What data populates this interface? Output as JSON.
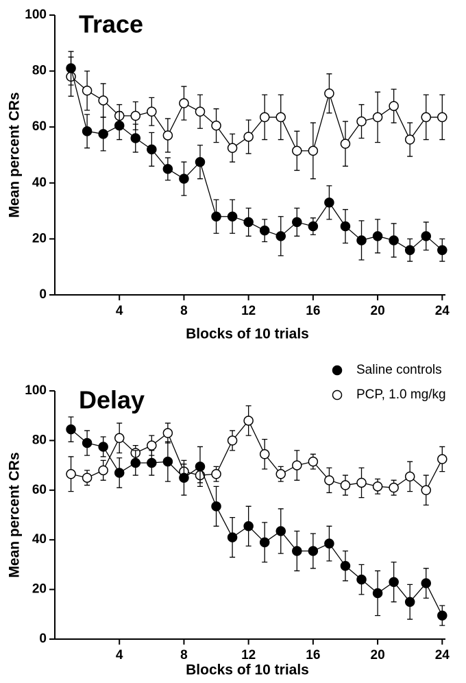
{
  "chart_data": [
    {
      "type": "line",
      "title": "Trace",
      "xlabel": "Blocks of 10 trials",
      "ylabel": "Mean percent CRs",
      "x": [
        1,
        2,
        3,
        4,
        5,
        6,
        7,
        8,
        9,
        10,
        11,
        12,
        13,
        14,
        15,
        16,
        17,
        18,
        19,
        20,
        21,
        22,
        23,
        24
      ],
      "xlim": [
        0,
        24.2
      ],
      "xticks": [
        4,
        8,
        12,
        16,
        20,
        24
      ],
      "ylim": [
        0,
        100
      ],
      "yticks": [
        0,
        20,
        40,
        60,
        80,
        100
      ],
      "series": [
        {
          "marker": "filled",
          "color": "#000000",
          "values": [
            81,
            58.5,
            57.5,
            60.5,
            56,
            52,
            45,
            41.5,
            47.5,
            28,
            28,
            26,
            23,
            21,
            26,
            24.5,
            33,
            24.5,
            19.5,
            21,
            19.5,
            16,
            21,
            16
          ],
          "errors": [
            6,
            6,
            6,
            5,
            5,
            6,
            4,
            6,
            6,
            6,
            6,
            5,
            4,
            7,
            5,
            3,
            6,
            6,
            7,
            6,
            6,
            4,
            5,
            4
          ]
        },
        {
          "marker": "open",
          "color": "#000000",
          "values": [
            78,
            73,
            69.5,
            64,
            64,
            65.5,
            57,
            68.5,
            65.5,
            60.5,
            52.5,
            56.5,
            63.5,
            63.5,
            51.5,
            51.5,
            72,
            54,
            62,
            63.5,
            67.5,
            55.5,
            63.5,
            63.5
          ],
          "errors": [
            7,
            7,
            6,
            4,
            5,
            5,
            6,
            6,
            6,
            6,
            5,
            6,
            8,
            8,
            7,
            10,
            7,
            8,
            6,
            9,
            6,
            6,
            8,
            8
          ]
        }
      ]
    },
    {
      "type": "line",
      "title": "Delay",
      "xlabel": "Blocks of 10 trials",
      "ylabel": "Mean percent CRs",
      "x": [
        1,
        2,
        3,
        4,
        5,
        6,
        7,
        8,
        9,
        10,
        11,
        12,
        13,
        14,
        15,
        16,
        17,
        18,
        19,
        20,
        21,
        22,
        23,
        24
      ],
      "xlim": [
        0,
        24.2
      ],
      "xticks": [
        4,
        8,
        12,
        16,
        20,
        24
      ],
      "ylim": [
        0,
        100
      ],
      "yticks": [
        0,
        20,
        40,
        60,
        80,
        100
      ],
      "legend": "upper right",
      "series": [
        {
          "name": "Saline controls",
          "marker": "filled",
          "color": "#000000",
          "values": [
            84.5,
            79,
            77.5,
            67,
            71,
            71,
            71.5,
            65,
            69.5,
            53.5,
            41,
            45.5,
            39,
            43.5,
            35.5,
            35.5,
            38.5,
            29.5,
            24,
            18.5,
            23,
            15,
            22.5,
            9.5
          ],
          "errors": [
            5,
            5,
            4,
            6,
            5,
            5,
            8,
            7,
            8,
            8,
            8,
            8,
            8,
            9,
            8,
            7,
            7,
            6,
            6,
            9,
            8,
            7,
            6,
            4
          ]
        },
        {
          "name": "PCP, 1.0 mg/kg",
          "marker": "open",
          "color": "#000000",
          "values": [
            66.5,
            65,
            68,
            81,
            75,
            78,
            83,
            67.5,
            66,
            66.5,
            80,
            88,
            74.5,
            66.5,
            70,
            71.5,
            64,
            62,
            63,
            61.5,
            61,
            65.5,
            60,
            72.5
          ],
          "errors": [
            7,
            3,
            4,
            6,
            3,
            4,
            4,
            3,
            3,
            3,
            4,
            6,
            6,
            3,
            6,
            3,
            5,
            4,
            6,
            3,
            3,
            6,
            6,
            5
          ]
        }
      ]
    }
  ]
}
